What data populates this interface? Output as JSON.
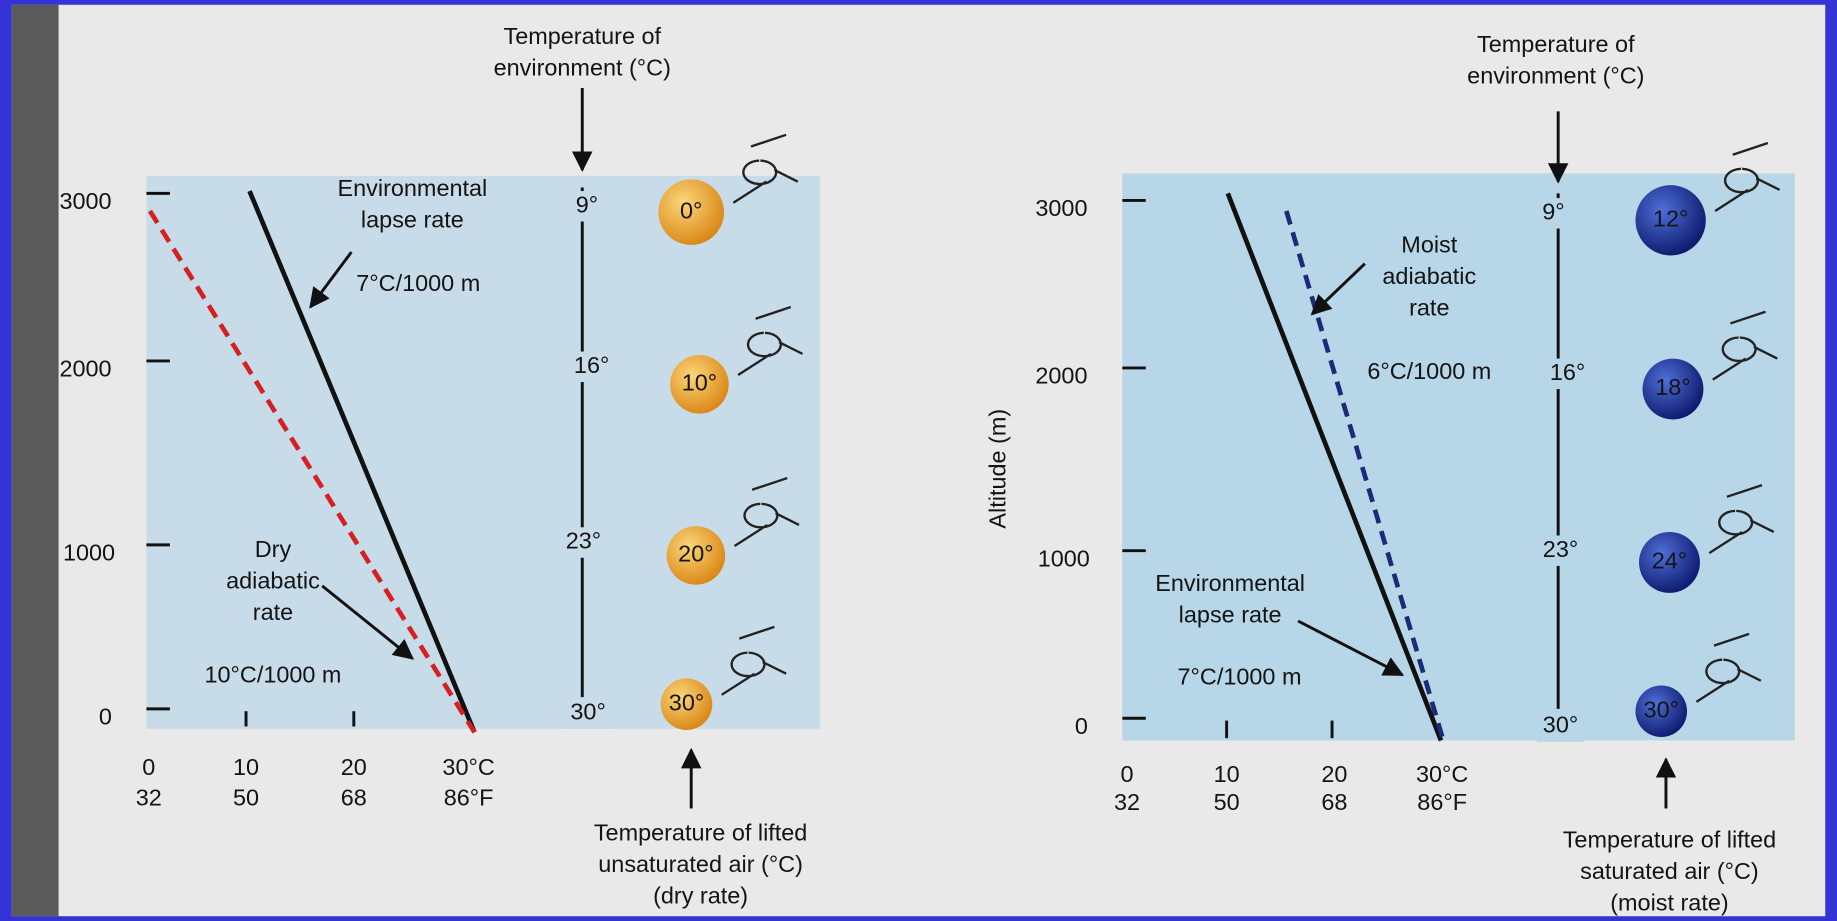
{
  "panels": [
    {
      "env_label": [
        "Temperature of",
        "environment (°C)"
      ],
      "y_labels": [
        "3000",
        "2000",
        "1000",
        "0"
      ],
      "x_labels_c": [
        "0",
        "10",
        "20",
        "30°C"
      ],
      "x_labels_f": [
        "32",
        "50",
        "68",
        "86°F"
      ],
      "env_lapse_label": [
        "Environmental",
        "lapse rate"
      ],
      "env_lapse_rate": "7°C/1000 m",
      "parcel_rate_label": [
        "Dry",
        "adiabatic",
        "rate"
      ],
      "parcel_rate": "10°C/1000 m",
      "env_temps": [
        "9°",
        "16°",
        "23°",
        "30°"
      ],
      "parcel_temps": [
        "0°",
        "10°",
        "20°",
        "30°"
      ],
      "parcel_label": [
        "Temperature of lifted",
        "unsaturated air (°C)",
        "(dry rate)"
      ]
    },
    {
      "env_label": [
        "Temperature of",
        "environment (°C)"
      ],
      "y_axis_label": "Altitude (m)",
      "y_labels": [
        "3000",
        "2000",
        "1000",
        "0"
      ],
      "x_labels_c": [
        "0",
        "10",
        "20",
        "30°C"
      ],
      "x_labels_f": [
        "32",
        "50",
        "68",
        "86°F"
      ],
      "env_lapse_label": [
        "Environmental",
        "lapse rate"
      ],
      "env_lapse_rate": "7°C/1000 m",
      "parcel_rate_label": [
        "Moist",
        "adiabatic",
        "rate"
      ],
      "parcel_rate": "6°C/1000 m",
      "env_temps": [
        "9°",
        "16°",
        "23°",
        "30°"
      ],
      "parcel_temps": [
        "12°",
        "18°",
        "24°",
        "30°"
      ],
      "parcel_label": [
        "Temperature of lifted",
        "saturated air (°C)",
        "(moist rate)"
      ]
    }
  ]
}
